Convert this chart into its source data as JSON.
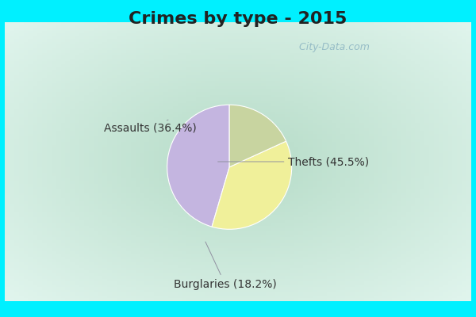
{
  "title": "Crimes by type - 2015",
  "slices": [
    {
      "label": "Thefts (45.5%)",
      "value": 45.5,
      "color": "#c4b5e0"
    },
    {
      "label": "Assaults (36.4%)",
      "value": 36.4,
      "color": "#f0f09a"
    },
    {
      "label": "Burglaries (18.2%)",
      "value": 18.2,
      "color": "#c8d4a0"
    }
  ],
  "bg_color_top": "#00f0ff",
  "bg_color_bottom": "#00f0ff",
  "bg_gradient_start": "#b8e8d8",
  "bg_gradient_end": "#e8f8f0",
  "title_fontsize": 16,
  "label_fontsize": 10,
  "startangle": 90,
  "watermark": "  City-Data.com"
}
